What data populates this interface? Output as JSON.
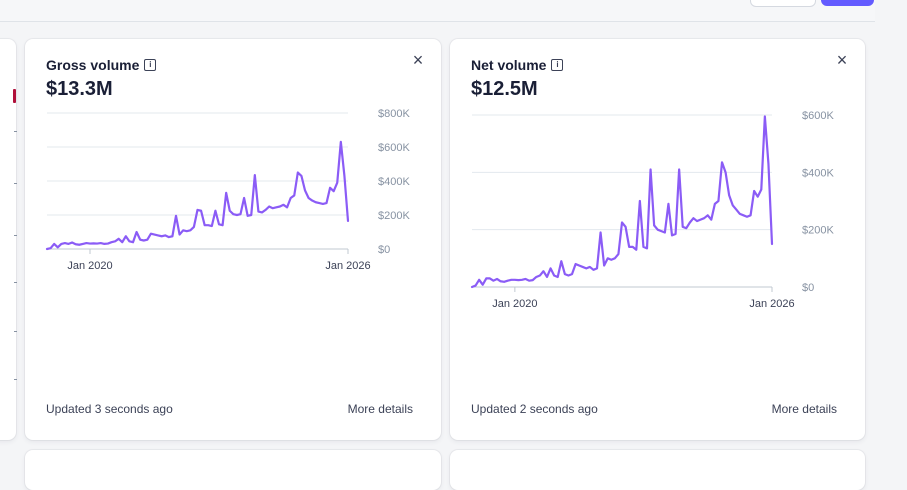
{
  "cards": [
    {
      "title": "Gross volume",
      "value": "$13.3M",
      "footer": "Updated 3 seconds ago",
      "link": "More details",
      "chart_data": {
        "type": "line",
        "color": "#8b5cf6",
        "x_start": "2019-01",
        "x_end": "2026-02",
        "x_ticks": [
          "Jan 2020",
          "Jan 2026"
        ],
        "y_ticks": [
          "$0",
          "$200K",
          "$400K",
          "$600K",
          "$800K"
        ],
        "ylim": [
          0,
          800000
        ],
        "grid": true,
        "values": [
          0,
          5000,
          30000,
          10000,
          30000,
          35000,
          30000,
          38000,
          28000,
          25000,
          30000,
          35000,
          32000,
          33000,
          32000,
          35000,
          30000,
          32000,
          40000,
          45000,
          60000,
          40000,
          75000,
          45000,
          40000,
          100000,
          55000,
          50000,
          55000,
          90000,
          85000,
          80000,
          75000,
          80000,
          70000,
          75000,
          195000,
          85000,
          110000,
          105000,
          110000,
          130000,
          230000,
          225000,
          140000,
          140000,
          135000,
          225000,
          145000,
          140000,
          330000,
          225000,
          205000,
          200000,
          205000,
          300000,
          195000,
          200000,
          435000,
          220000,
          215000,
          230000,
          250000,
          240000,
          245000,
          250000,
          260000,
          245000,
          300000,
          315000,
          450000,
          430000,
          345000,
          300000,
          285000,
          275000,
          270000,
          265000,
          270000,
          360000,
          340000,
          390000,
          630000,
          430000,
          165000
        ]
      }
    },
    {
      "title": "Net volume",
      "value": "$12.5M",
      "footer": "Updated 2 seconds ago",
      "link": "More details",
      "chart_data": {
        "type": "line",
        "color": "#8b5cf6",
        "x_start": "2019-01",
        "x_end": "2026-02",
        "x_ticks": [
          "Jan 2020",
          "Jan 2026"
        ],
        "y_ticks": [
          "$0",
          "$200K",
          "$400K",
          "$600K"
        ],
        "ylim": [
          0,
          600000
        ],
        "grid": true,
        "values": [
          0,
          5000,
          25000,
          8000,
          30000,
          30000,
          22000,
          28000,
          20000,
          18000,
          22000,
          25000,
          25000,
          24000,
          25000,
          28000,
          22000,
          24000,
          35000,
          40000,
          55000,
          35000,
          65000,
          40000,
          35000,
          90000,
          45000,
          40000,
          45000,
          80000,
          75000,
          70000,
          65000,
          70000,
          60000,
          65000,
          190000,
          75000,
          100000,
          95000,
          100000,
          115000,
          225000,
          210000,
          140000,
          140000,
          130000,
          300000,
          140000,
          135000,
          410000,
          215000,
          200000,
          195000,
          190000,
          290000,
          180000,
          185000,
          410000,
          210000,
          205000,
          225000,
          240000,
          230000,
          235000,
          240000,
          250000,
          235000,
          290000,
          300000,
          435000,
          400000,
          320000,
          285000,
          270000,
          255000,
          250000,
          245000,
          250000,
          335000,
          315000,
          340000,
          595000,
          430000,
          150000
        ]
      }
    }
  ]
}
